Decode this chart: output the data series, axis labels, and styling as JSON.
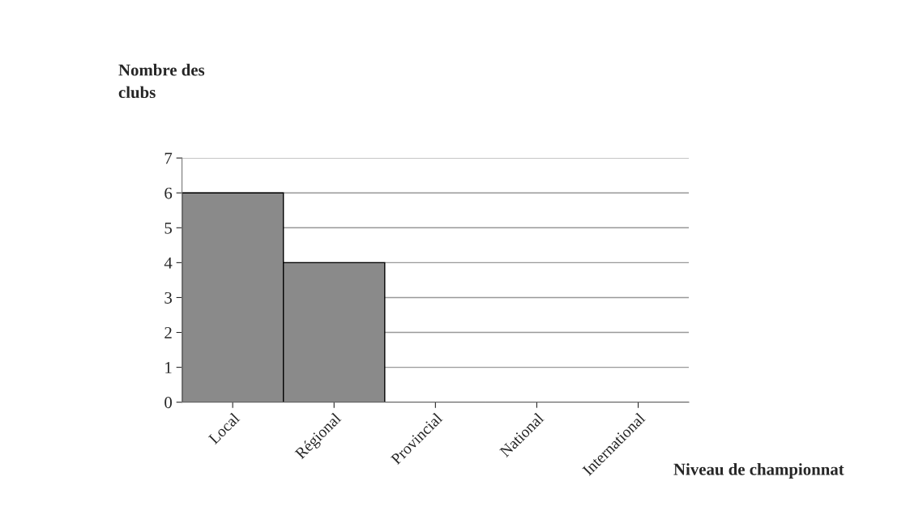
{
  "chart_data": {
    "type": "bar",
    "ylabel": "Nombre des\nclubs",
    "xlabel": "Niveau de championnat",
    "categories": [
      "Local",
      "Régional",
      "Provincial",
      "National",
      "International"
    ],
    "values": [
      6,
      4,
      0,
      0,
      0
    ],
    "color": "#8a8a8a",
    "ylim": [
      0,
      7
    ],
    "yticks": [
      0,
      1,
      2,
      3,
      4,
      5,
      6,
      7
    ],
    "grid": "y",
    "legend": false
  }
}
